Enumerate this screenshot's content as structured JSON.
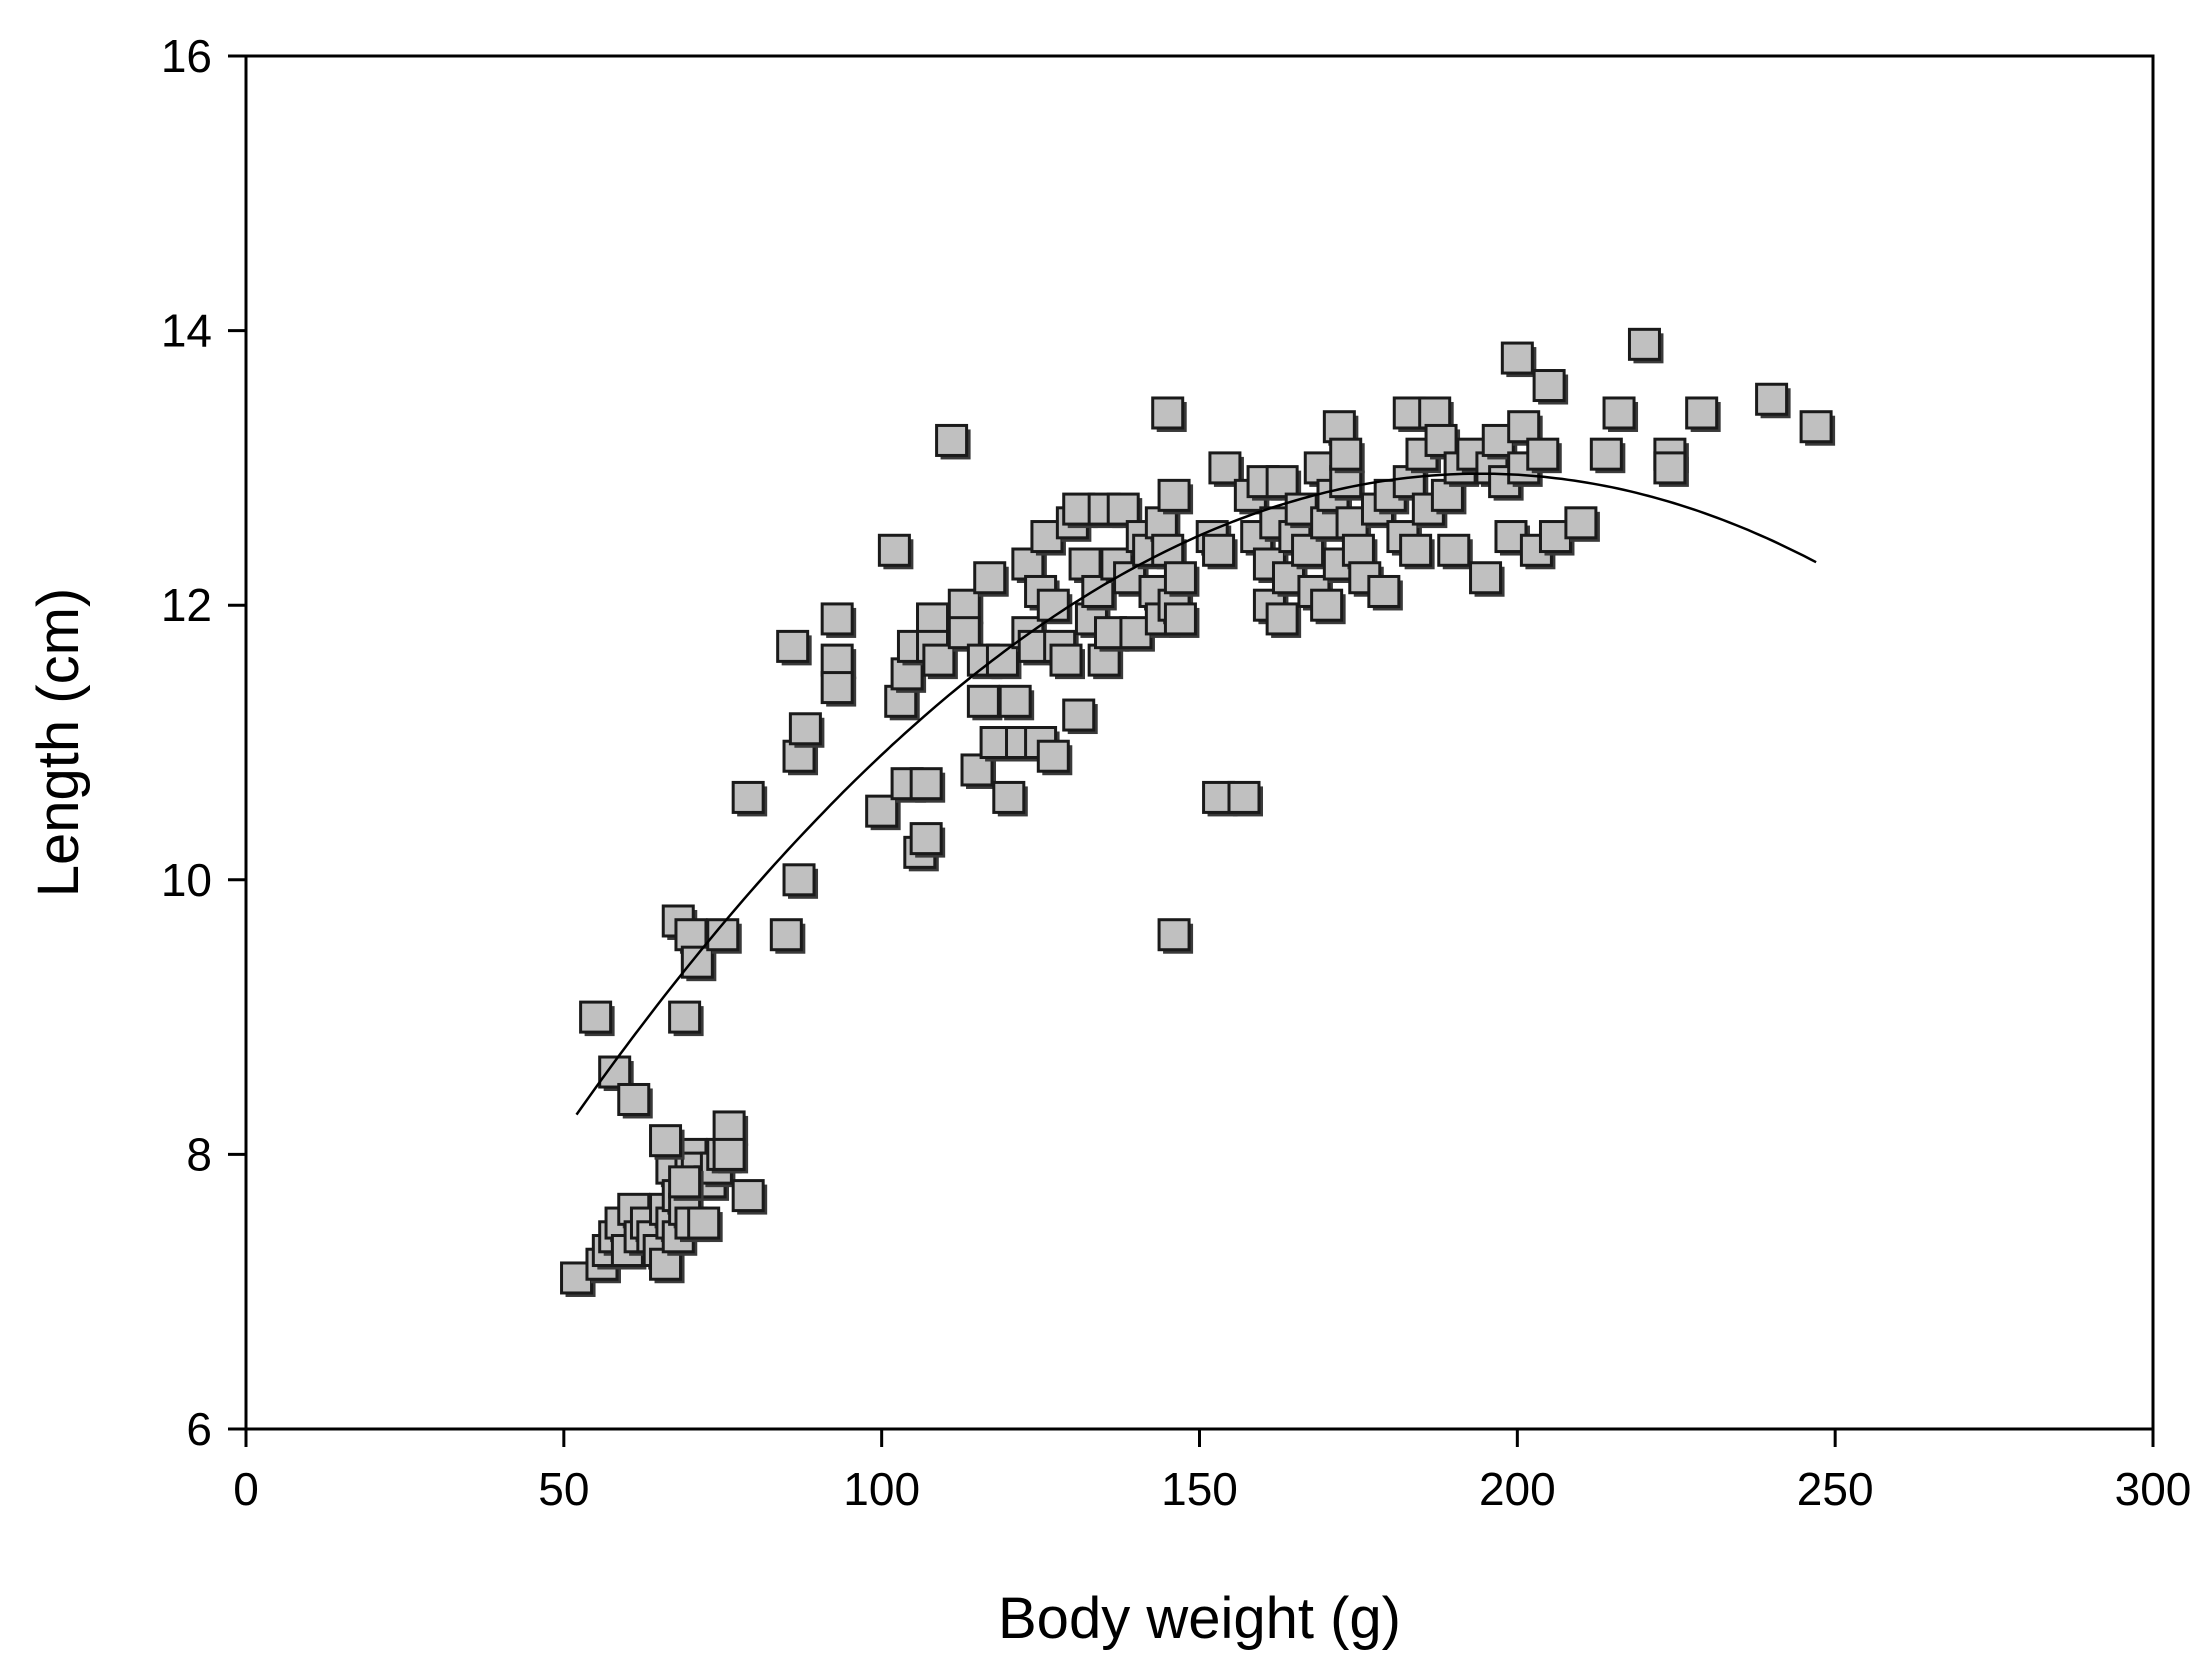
{
  "chart_data": {
    "type": "scatter",
    "title": "",
    "xlabel": "Body weight (g)",
    "ylabel": "Length (cm)",
    "xlim": [
      0,
      300
    ],
    "ylim": [
      6,
      16
    ],
    "xticks": [
      0,
      50,
      100,
      150,
      200,
      250,
      300
    ],
    "yticks": [
      6,
      8,
      10,
      12,
      14,
      16
    ],
    "legend": "none",
    "marker": {
      "shape": "square",
      "fill": "#c0c0c0",
      "edge": "#1a1a1a"
    },
    "fit": {
      "type": "quadratic",
      "x_range": [
        52,
        247
      ],
      "coefficients": {
        "a": -0.000231,
        "b": 0.0897,
        "c": 4.25
      },
      "label": ""
    },
    "series": [
      {
        "name": "observations",
        "points": [
          [
            52,
            7.1
          ],
          [
            56,
            7.2
          ],
          [
            57,
            7.3
          ],
          [
            58,
            7.4
          ],
          [
            59,
            7.5
          ],
          [
            60,
            7.3
          ],
          [
            61,
            7.6
          ],
          [
            62,
            7.4
          ],
          [
            63,
            7.5
          ],
          [
            64,
            7.4
          ],
          [
            65,
            7.3
          ],
          [
            66,
            7.2
          ],
          [
            66,
            7.6
          ],
          [
            67,
            7.5
          ],
          [
            67,
            7.9
          ],
          [
            68,
            7.7
          ],
          [
            68,
            7.4
          ],
          [
            69,
            7.6
          ],
          [
            70,
            8.0
          ],
          [
            70,
            7.5
          ],
          [
            71,
            7.9
          ],
          [
            72,
            7.5
          ],
          [
            73,
            7.8
          ],
          [
            74,
            7.9
          ],
          [
            75,
            8.0
          ],
          [
            76,
            8.2
          ],
          [
            76,
            8.0
          ],
          [
            79,
            7.7
          ],
          [
            66,
            8.1
          ],
          [
            69,
            7.8
          ],
          [
            55,
            9.0
          ],
          [
            58,
            8.6
          ],
          [
            61,
            8.4
          ],
          [
            68,
            9.7
          ],
          [
            70,
            9.6
          ],
          [
            71,
            9.4
          ],
          [
            75,
            9.6
          ],
          [
            69,
            9.0
          ],
          [
            79,
            10.6
          ],
          [
            85,
            9.6
          ],
          [
            87,
            10.0
          ],
          [
            86,
            11.7
          ],
          [
            87,
            10.9
          ],
          [
            88,
            11.1
          ],
          [
            93,
            11.9
          ],
          [
            93,
            11.6
          ],
          [
            93,
            11.4
          ],
          [
            100,
            10.5
          ],
          [
            102,
            12.4
          ],
          [
            103,
            11.3
          ],
          [
            104,
            10.7
          ],
          [
            104,
            11.5
          ],
          [
            105,
            11.7
          ],
          [
            106,
            10.2
          ],
          [
            107,
            10.3
          ],
          [
            107,
            10.7
          ],
          [
            108,
            11.9
          ],
          [
            108,
            11.7
          ],
          [
            109,
            11.6
          ],
          [
            111,
            13.2
          ],
          [
            113,
            12.0
          ],
          [
            113,
            11.8
          ],
          [
            115,
            10.8
          ],
          [
            116,
            11.6
          ],
          [
            116,
            11.3
          ],
          [
            117,
            12.2
          ],
          [
            118,
            11.0
          ],
          [
            119,
            11.6
          ],
          [
            120,
            10.6
          ],
          [
            121,
            11.3
          ],
          [
            122,
            11.0
          ],
          [
            123,
            11.8
          ],
          [
            123,
            12.3
          ],
          [
            124,
            11.7
          ],
          [
            125,
            12.1
          ],
          [
            125,
            11.0
          ],
          [
            126,
            12.5
          ],
          [
            127,
            10.9
          ],
          [
            127,
            12.0
          ],
          [
            128,
            11.7
          ],
          [
            129,
            11.6
          ],
          [
            130,
            12.6
          ],
          [
            131,
            11.2
          ],
          [
            131,
            12.7
          ],
          [
            132,
            12.3
          ],
          [
            133,
            11.9
          ],
          [
            134,
            12.1
          ],
          [
            135,
            12.7
          ],
          [
            135,
            11.6
          ],
          [
            136,
            11.8
          ],
          [
            137,
            12.3
          ],
          [
            138,
            12.7
          ],
          [
            139,
            12.2
          ],
          [
            140,
            11.8
          ],
          [
            141,
            12.5
          ],
          [
            142,
            12.4
          ],
          [
            143,
            12.1
          ],
          [
            144,
            12.6
          ],
          [
            144,
            11.9
          ],
          [
            145,
            12.4
          ],
          [
            145,
            13.4
          ],
          [
            146,
            12.8
          ],
          [
            146,
            12.0
          ],
          [
            147,
            11.9
          ],
          [
            147,
            12.2
          ],
          [
            146,
            9.6
          ],
          [
            152,
            12.5
          ],
          [
            153,
            12.4
          ],
          [
            153,
            10.6
          ],
          [
            154,
            13.0
          ],
          [
            157,
            10.6
          ],
          [
            158,
            12.8
          ],
          [
            159,
            12.5
          ],
          [
            160,
            12.9
          ],
          [
            161,
            12.3
          ],
          [
            161,
            12.0
          ],
          [
            162,
            12.6
          ],
          [
            163,
            12.9
          ],
          [
            163,
            11.9
          ],
          [
            164,
            12.2
          ],
          [
            165,
            12.5
          ],
          [
            166,
            12.7
          ],
          [
            167,
            12.4
          ],
          [
            168,
            12.1
          ],
          [
            169,
            13.0
          ],
          [
            170,
            12.6
          ],
          [
            170,
            12.0
          ],
          [
            171,
            12.8
          ],
          [
            172,
            13.3
          ],
          [
            172,
            12.3
          ],
          [
            173,
            12.9
          ],
          [
            173,
            13.1
          ],
          [
            174,
            12.6
          ],
          [
            175,
            12.4
          ],
          [
            176,
            12.2
          ],
          [
            178,
            12.7
          ],
          [
            179,
            12.1
          ],
          [
            180,
            12.8
          ],
          [
            182,
            12.5
          ],
          [
            183,
            12.9
          ],
          [
            183,
            13.4
          ],
          [
            184,
            12.4
          ],
          [
            185,
            13.1
          ],
          [
            186,
            12.7
          ],
          [
            187,
            13.4
          ],
          [
            188,
            13.2
          ],
          [
            189,
            12.8
          ],
          [
            190,
            12.4
          ],
          [
            191,
            13.0
          ],
          [
            193,
            13.1
          ],
          [
            195,
            12.2
          ],
          [
            196,
            13.0
          ],
          [
            197,
            13.2
          ],
          [
            198,
            12.9
          ],
          [
            199,
            12.5
          ],
          [
            200,
            13.8
          ],
          [
            201,
            13.3
          ],
          [
            201,
            13.0
          ],
          [
            203,
            12.4
          ],
          [
            204,
            13.1
          ],
          [
            205,
            13.6
          ],
          [
            206,
            12.5
          ],
          [
            210,
            12.6
          ],
          [
            214,
            13.1
          ],
          [
            216,
            13.4
          ],
          [
            220,
            13.9
          ],
          [
            224,
            13.1
          ],
          [
            224,
            13.0
          ],
          [
            229,
            13.4
          ],
          [
            240,
            13.5
          ],
          [
            247,
            13.3
          ]
        ]
      }
    ]
  }
}
